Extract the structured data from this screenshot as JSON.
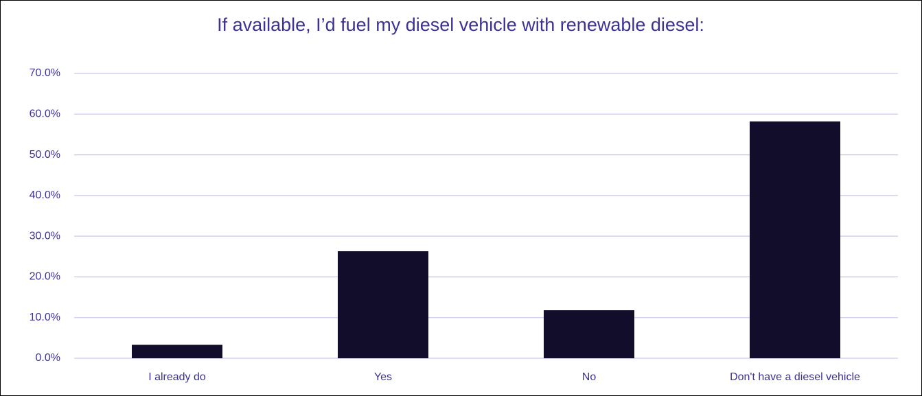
{
  "chart_data": {
    "type": "bar",
    "title": "If available, I’d fuel my diesel vehicle with renewable diesel:",
    "categories": [
      "I already do",
      "Yes",
      "No",
      "Don't have a diesel vehicle"
    ],
    "values": [
      3.3,
      26.3,
      11.8,
      58.2
    ],
    "color": "#110d2a",
    "ylim": [
      0,
      70
    ],
    "yticks": [
      {
        "value": 0,
        "label": "0.0%"
      },
      {
        "value": 10,
        "label": "10.0%"
      },
      {
        "value": 20,
        "label": "20.0%"
      },
      {
        "value": 30,
        "label": "30.0%"
      },
      {
        "value": 40,
        "label": "40.0%"
      },
      {
        "value": 50,
        "label": "50.0%"
      },
      {
        "value": 60,
        "label": "60.0%"
      },
      {
        "value": 70,
        "label": "70.0%"
      }
    ],
    "grid": true
  }
}
